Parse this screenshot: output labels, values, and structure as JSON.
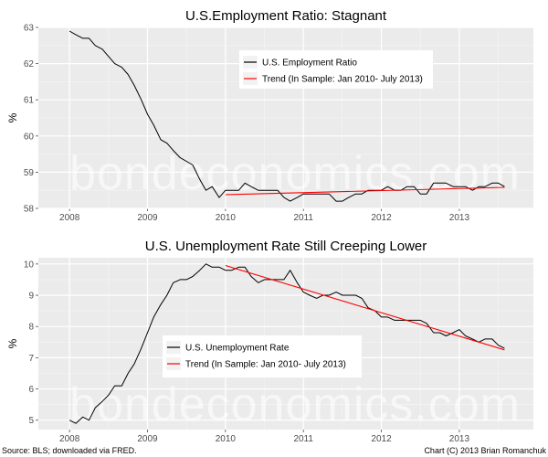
{
  "watermark": "bondeconomics.com",
  "footer": {
    "source": "Source: BLS; downloaded via FRED.",
    "credit": "Chart (C) 2013 Brian Romanchuk"
  },
  "colors": {
    "panel_bg": "#ebebeb",
    "grid": "#ffffff",
    "actual": "#000000",
    "trend": "#ff0000"
  },
  "chart_data": [
    {
      "type": "line",
      "title": "U.S.Employment Ratio: Stagnant",
      "xlabel": "",
      "ylabel": "%",
      "xlim": [
        2007.6,
        2013.95
      ],
      "ylim": [
        58,
        63
      ],
      "x_ticks": [
        2008,
        2009,
        2010,
        2011,
        2012,
        2013
      ],
      "y_ticks": [
        58,
        59,
        60,
        61,
        62,
        63
      ],
      "grid": true,
      "legend_position": "top-right",
      "series": [
        {
          "name": "U.S. Employment Ratio",
          "color": "#000000",
          "x": [
            2008.0,
            2008.08,
            2008.17,
            2008.25,
            2008.33,
            2008.42,
            2008.5,
            2008.58,
            2008.67,
            2008.75,
            2008.83,
            2008.92,
            2009.0,
            2009.08,
            2009.17,
            2009.25,
            2009.33,
            2009.42,
            2009.5,
            2009.58,
            2009.67,
            2009.75,
            2009.83,
            2009.92,
            2010.0,
            2010.08,
            2010.17,
            2010.25,
            2010.33,
            2010.42,
            2010.5,
            2010.58,
            2010.67,
            2010.75,
            2010.83,
            2010.92,
            2011.0,
            2011.08,
            2011.17,
            2011.25,
            2011.33,
            2011.42,
            2011.5,
            2011.58,
            2011.67,
            2011.75,
            2011.83,
            2011.92,
            2012.0,
            2012.08,
            2012.17,
            2012.25,
            2012.33,
            2012.42,
            2012.5,
            2012.58,
            2012.67,
            2012.75,
            2012.83,
            2012.92,
            2013.0,
            2013.08,
            2013.17,
            2013.25,
            2013.33,
            2013.42,
            2013.5,
            2013.58
          ],
          "y": [
            62.9,
            62.8,
            62.7,
            62.7,
            62.5,
            62.4,
            62.2,
            62.0,
            61.9,
            61.7,
            61.4,
            61.0,
            60.6,
            60.3,
            59.9,
            59.8,
            59.6,
            59.4,
            59.3,
            59.2,
            58.8,
            58.5,
            58.6,
            58.3,
            58.5,
            58.5,
            58.5,
            58.7,
            58.6,
            58.5,
            58.5,
            58.5,
            58.5,
            58.3,
            58.2,
            58.3,
            58.4,
            58.4,
            58.4,
            58.4,
            58.4,
            58.2,
            58.2,
            58.3,
            58.4,
            58.4,
            58.5,
            58.5,
            58.5,
            58.6,
            58.5,
            58.5,
            58.6,
            58.6,
            58.4,
            58.4,
            58.7,
            58.7,
            58.7,
            58.6,
            58.6,
            58.6,
            58.5,
            58.6,
            58.6,
            58.7,
            58.7,
            58.6
          ]
        },
        {
          "name": "Trend (In Sample: Jan 2010- July 2013)",
          "color": "#ff0000",
          "x": [
            2010.0,
            2013.58
          ],
          "y": [
            58.38,
            58.58
          ]
        }
      ]
    },
    {
      "type": "line",
      "title": "U.S. Unemployment Rate Still Creeping Lower",
      "xlabel": "",
      "ylabel": "%",
      "xlim": [
        2007.6,
        2013.95
      ],
      "ylim": [
        4.7,
        10.2
      ],
      "x_ticks": [
        2008,
        2009,
        2010,
        2011,
        2012,
        2013
      ],
      "y_ticks": [
        5,
        6,
        7,
        8,
        9,
        10
      ],
      "grid": true,
      "legend_position": "bottom-left",
      "series": [
        {
          "name": "U.S. Unemployment Rate",
          "color": "#000000",
          "x": [
            2008.0,
            2008.08,
            2008.17,
            2008.25,
            2008.33,
            2008.42,
            2008.5,
            2008.58,
            2008.67,
            2008.75,
            2008.83,
            2008.92,
            2009.0,
            2009.08,
            2009.17,
            2009.25,
            2009.33,
            2009.42,
            2009.5,
            2009.58,
            2009.67,
            2009.75,
            2009.83,
            2009.92,
            2010.0,
            2010.08,
            2010.17,
            2010.25,
            2010.33,
            2010.42,
            2010.5,
            2010.58,
            2010.67,
            2010.75,
            2010.83,
            2010.92,
            2011.0,
            2011.08,
            2011.17,
            2011.25,
            2011.33,
            2011.42,
            2011.5,
            2011.58,
            2011.67,
            2011.75,
            2011.83,
            2011.92,
            2012.0,
            2012.08,
            2012.17,
            2012.25,
            2012.33,
            2012.42,
            2012.5,
            2012.58,
            2012.67,
            2012.75,
            2012.83,
            2012.92,
            2013.0,
            2013.08,
            2013.17,
            2013.25,
            2013.33,
            2013.42,
            2013.5,
            2013.58
          ],
          "y": [
            5.0,
            4.9,
            5.1,
            5.0,
            5.4,
            5.6,
            5.8,
            6.1,
            6.1,
            6.5,
            6.8,
            7.3,
            7.8,
            8.3,
            8.7,
            9.0,
            9.4,
            9.5,
            9.5,
            9.6,
            9.8,
            10.0,
            9.9,
            9.9,
            9.8,
            9.8,
            9.9,
            9.9,
            9.6,
            9.4,
            9.5,
            9.5,
            9.5,
            9.5,
            9.8,
            9.4,
            9.1,
            9.0,
            8.9,
            9.0,
            9.0,
            9.1,
            9.0,
            9.0,
            9.0,
            8.9,
            8.6,
            8.5,
            8.3,
            8.3,
            8.2,
            8.2,
            8.2,
            8.2,
            8.2,
            8.1,
            7.8,
            7.8,
            7.7,
            7.8,
            7.9,
            7.7,
            7.6,
            7.5,
            7.6,
            7.6,
            7.4,
            7.3
          ]
        },
        {
          "name": "Trend (In Sample: Jan 2010- July 2013)",
          "color": "#ff0000",
          "x": [
            2010.0,
            2013.58
          ],
          "y": [
            9.95,
            7.25
          ]
        }
      ]
    }
  ]
}
